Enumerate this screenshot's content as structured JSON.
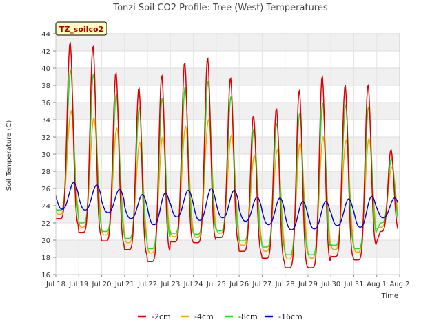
{
  "chart_data": {
    "type": "line",
    "title": "Tonzi Soil CO2 Profile: Tree (West) Temperatures",
    "xlabel": "Time",
    "ylabel": "Soil Temperature (C)",
    "site_label": "TZ_soilco2",
    "xlim": [
      "2024-07-18",
      "2024-08-02"
    ],
    "ylim": [
      16,
      44
    ],
    "x_ticks": [
      "Jul 18",
      "Jul 19",
      "Jul 20",
      "Jul 21",
      "Jul 22",
      "Jul 23",
      "Jul 24",
      "Jul 25",
      "Jul 26",
      "Jul 27",
      "Jul 28",
      "Jul 29",
      "Jul 30",
      "Jul 31",
      "Aug 1",
      "Aug 2"
    ],
    "y_ticks": [
      16,
      18,
      20,
      22,
      24,
      26,
      28,
      30,
      32,
      34,
      36,
      38,
      40,
      42,
      44
    ],
    "grid": true,
    "banded_background": true,
    "legend_position": "bottom",
    "colors": {
      "-2cm": "#dd0000",
      "-4cm": "#eeaa00",
      "-8cm": "#22dd22",
      "-16cm": "#0000cc"
    },
    "x": [
      "Jul 18",
      "Jul 19",
      "Jul 20",
      "Jul 21",
      "Jul 22",
      "Jul 23",
      "Jul 24",
      "Jul 25",
      "Jul 26",
      "Jul 27",
      "Jul 28",
      "Jul 29",
      "Jul 30",
      "Jul 31",
      "Aug 1"
    ],
    "series": [
      {
        "name": "-2cm",
        "daily_min": [
          22.5,
          20.9,
          19.9,
          18.9,
          17.5,
          19.8,
          19.7,
          20.3,
          18.7,
          17.9,
          16.8,
          16.8,
          18.1,
          17.7,
          21.0
        ],
        "daily_max": [
          43.0,
          42.6,
          39.5,
          37.7,
          39.2,
          40.7,
          41.2,
          38.9,
          34.5,
          35.3,
          37.5,
          39.1,
          38.0,
          38.1,
          30.5
        ]
      },
      {
        "name": "-4cm",
        "daily_min": [
          23.0,
          21.5,
          20.6,
          19.7,
          18.5,
          20.4,
          20.3,
          20.8,
          19.4,
          18.7,
          17.8,
          17.9,
          18.9,
          18.6,
          21.5
        ],
        "daily_max": [
          35.0,
          34.2,
          33.0,
          31.3,
          32.0,
          33.2,
          34.0,
          32.2,
          29.8,
          30.5,
          31.3,
          32.0,
          31.6,
          31.8,
          28.5
        ]
      },
      {
        "name": "-8cm",
        "daily_min": [
          23.5,
          22.0,
          21.0,
          20.2,
          19.0,
          20.8,
          20.7,
          21.1,
          19.9,
          19.2,
          18.3,
          18.3,
          19.4,
          19.0,
          22.0
        ],
        "daily_max": [
          39.8,
          39.3,
          37.0,
          35.5,
          36.5,
          37.8,
          38.5,
          36.7,
          33.0,
          33.6,
          34.8,
          36.0,
          35.8,
          35.5,
          29.5
        ]
      },
      {
        "name": "-16cm",
        "daily_min": [
          23.6,
          23.5,
          23.2,
          22.5,
          21.8,
          22.7,
          22.3,
          22.6,
          22.2,
          21.8,
          21.2,
          21.3,
          21.7,
          21.5,
          22.6
        ],
        "daily_max": [
          26.7,
          26.4,
          25.9,
          25.3,
          25.5,
          25.8,
          26.0,
          25.8,
          25.0,
          24.9,
          24.5,
          24.5,
          24.8,
          25.1,
          24.9
        ]
      }
    ]
  }
}
